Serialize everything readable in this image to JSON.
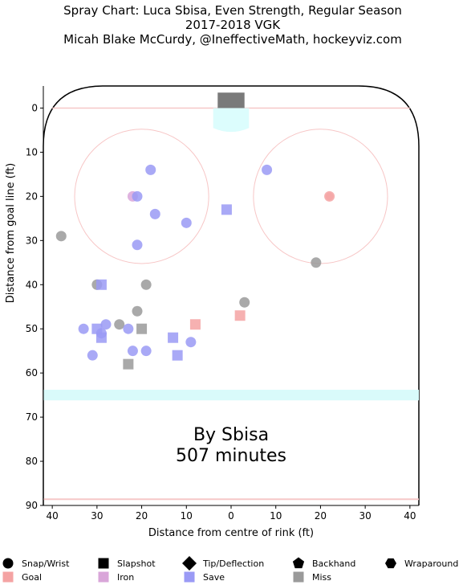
{
  "title_lines": [
    "Spray Chart: Luca Sbisa, Even Strength, Regular Season",
    "2017-2018 VGK",
    "Micah Blake McCurdy, @IneffectiveMath, hockeyviz.com"
  ],
  "overlay": {
    "line1": "By Sbisa",
    "line2": "507 minutes"
  },
  "chart_data": {
    "type": "scatter",
    "xlabel": "Distance from centre of rink (ft)",
    "ylabel": "Distance from goal line (ft)",
    "xlim": [
      42,
      -42
    ],
    "ylim": [
      -5,
      90
    ],
    "x_ticks": [
      40,
      30,
      20,
      10,
      0,
      10,
      20,
      30,
      40
    ],
    "x_tick_positions": [
      40,
      30,
      20,
      10,
      0,
      -10,
      -20,
      -30,
      -40
    ],
    "y_ticks": [
      0,
      10,
      20,
      30,
      40,
      50,
      60,
      70,
      80,
      90
    ],
    "x_axis_note": "horizontal axis shows absolute distance; left side = positive, right side = negative",
    "legend": {
      "shapes": [
        "Snap/Wrist",
        "Slapshot",
        "Tip/Deflection",
        "Backhand",
        "Wraparound"
      ],
      "outcomes": [
        {
          "name": "Goal",
          "color": "#f4a3a3"
        },
        {
          "name": "Iron",
          "color": "#d9a6d9"
        },
        {
          "name": "Save",
          "color": "#9a9af5"
        },
        {
          "name": "Miss",
          "color": "#9a9a9a"
        }
      ]
    },
    "points": [
      {
        "x": 22,
        "y": 20,
        "shape": "circle",
        "outcome": "Iron"
      },
      {
        "x": 21,
        "y": 20,
        "shape": "circle",
        "outcome": "Save"
      },
      {
        "x": 18,
        "y": 14,
        "shape": "circle",
        "outcome": "Save"
      },
      {
        "x": 17,
        "y": 24,
        "shape": "circle",
        "outcome": "Save"
      },
      {
        "x": 21,
        "y": 31,
        "shape": "circle",
        "outcome": "Save"
      },
      {
        "x": 10,
        "y": 26,
        "shape": "circle",
        "outcome": "Save"
      },
      {
        "x": -8,
        "y": 14,
        "shape": "circle",
        "outcome": "Save"
      },
      {
        "x": 1,
        "y": 23,
        "shape": "square",
        "outcome": "Save"
      },
      {
        "x": -22,
        "y": 20,
        "shape": "circle",
        "outcome": "Goal"
      },
      {
        "x": -19,
        "y": 35,
        "shape": "circle",
        "outcome": "Miss"
      },
      {
        "x": 38,
        "y": 29,
        "shape": "circle",
        "outcome": "Miss"
      },
      {
        "x": 30,
        "y": 40,
        "shape": "circle",
        "outcome": "Miss"
      },
      {
        "x": 29,
        "y": 40,
        "shape": "square",
        "outcome": "Save"
      },
      {
        "x": 19,
        "y": 40,
        "shape": "circle",
        "outcome": "Miss"
      },
      {
        "x": 21,
        "y": 46,
        "shape": "circle",
        "outcome": "Miss"
      },
      {
        "x": -3,
        "y": 44,
        "shape": "circle",
        "outcome": "Miss"
      },
      {
        "x": 33,
        "y": 50,
        "shape": "circle",
        "outcome": "Save"
      },
      {
        "x": 30,
        "y": 50,
        "shape": "square",
        "outcome": "Save"
      },
      {
        "x": 29,
        "y": 51,
        "shape": "circle",
        "outcome": "Save"
      },
      {
        "x": 29,
        "y": 52,
        "shape": "square",
        "outcome": "Save"
      },
      {
        "x": 28,
        "y": 49,
        "shape": "circle",
        "outcome": "Save"
      },
      {
        "x": 25,
        "y": 49,
        "shape": "circle",
        "outcome": "Miss"
      },
      {
        "x": 23,
        "y": 50,
        "shape": "circle",
        "outcome": "Save"
      },
      {
        "x": 20,
        "y": 50,
        "shape": "square",
        "outcome": "Miss"
      },
      {
        "x": 13,
        "y": 52,
        "shape": "square",
        "outcome": "Save"
      },
      {
        "x": 8,
        "y": 49,
        "shape": "square",
        "outcome": "Goal"
      },
      {
        "x": -2,
        "y": 47,
        "shape": "square",
        "outcome": "Goal"
      },
      {
        "x": 31,
        "y": 56,
        "shape": "circle",
        "outcome": "Save"
      },
      {
        "x": 22,
        "y": 55,
        "shape": "circle",
        "outcome": "Save"
      },
      {
        "x": 19,
        "y": 55,
        "shape": "circle",
        "outcome": "Save"
      },
      {
        "x": 12,
        "y": 56,
        "shape": "square",
        "outcome": "Save"
      },
      {
        "x": 9,
        "y": 53,
        "shape": "circle",
        "outcome": "Save"
      },
      {
        "x": 23,
        "y": 58,
        "shape": "square",
        "outcome": "Miss"
      }
    ]
  }
}
